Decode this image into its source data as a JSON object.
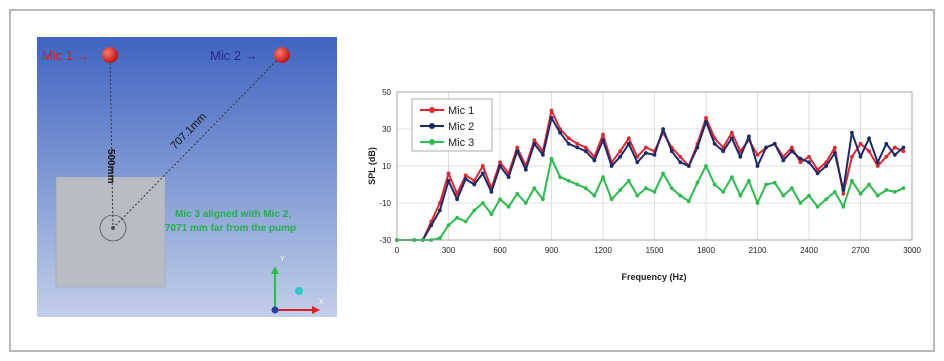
{
  "diagram": {
    "mic1_label": "Mic 1 →",
    "mic2_label": "Mic 2 →",
    "dist1_label": "500mm",
    "dist2_label": "707.1mm",
    "note_line1": "Mic 3 aligned with Mic 2,",
    "note_line2": "7071 mm far from the pump",
    "axis_y": "Y",
    "axis_x": "X",
    "colors": {
      "bg_top": "#3f64c0",
      "bg_bottom": "#c2cfe9",
      "mic": "#d61f1f",
      "note": "#22b14c",
      "label": "#2a2a8a"
    }
  },
  "chart_data": {
    "type": "line",
    "xlabel": "Frequency (Hz)",
    "ylabel": "SPL (dB)",
    "xlim": [
      0,
      3000
    ],
    "ylim": [
      -30,
      50
    ],
    "xticks": [
      0,
      300,
      600,
      900,
      1200,
      1500,
      1800,
      2100,
      2400,
      2700,
      3000
    ],
    "yticks": [
      -30,
      -10,
      10,
      30,
      50
    ],
    "grid": true,
    "legend": "top-left",
    "x": [
      0,
      100,
      150,
      200,
      250,
      300,
      350,
      400,
      450,
      500,
      550,
      600,
      650,
      700,
      750,
      800,
      850,
      900,
      950,
      1000,
      1050,
      1100,
      1150,
      1200,
      1250,
      1300,
      1350,
      1400,
      1450,
      1500,
      1550,
      1600,
      1650,
      1700,
      1750,
      1800,
      1850,
      1900,
      1950,
      2000,
      2050,
      2100,
      2150,
      2200,
      2250,
      2300,
      2350,
      2400,
      2450,
      2500,
      2550,
      2600,
      2650,
      2700,
      2750,
      2800,
      2850,
      2900,
      2950
    ],
    "series": [
      {
        "name": "Mic 1",
        "color": "#e3262e",
        "values": [
          -30,
          -30,
          -30,
          -20,
          -10,
          6,
          -5,
          5,
          2,
          10,
          -2,
          12,
          6,
          20,
          10,
          24,
          18,
          40,
          30,
          25,
          22,
          20,
          15,
          27,
          12,
          18,
          25,
          15,
          20,
          18,
          28,
          20,
          15,
          10,
          22,
          36,
          25,
          20,
          28,
          18,
          24,
          16,
          20,
          22,
          15,
          20,
          12,
          15,
          8,
          12,
          20,
          -5,
          15,
          22,
          18,
          10,
          15,
          20,
          18
        ]
      },
      {
        "name": "Mic 2",
        "color": "#1b2a6b",
        "values": [
          -30,
          -30,
          -30,
          -22,
          -14,
          2,
          -8,
          3,
          0,
          6,
          -4,
          10,
          4,
          18,
          8,
          22,
          16,
          36,
          28,
          22,
          20,
          18,
          13,
          24,
          10,
          15,
          22,
          12,
          17,
          16,
          30,
          18,
          12,
          10,
          20,
          34,
          22,
          18,
          25,
          15,
          26,
          10,
          20,
          22,
          13,
          18,
          14,
          12,
          6,
          10,
          17,
          -3,
          28,
          15,
          25,
          12,
          22,
          16,
          20
        ]
      },
      {
        "name": "Mic 3",
        "color": "#2dbb4e",
        "values": [
          -30,
          -30,
          -30,
          -30,
          -29,
          -22,
          -18,
          -20,
          -14,
          -10,
          -16,
          -8,
          -12,
          -5,
          -10,
          -2,
          -8,
          14,
          4,
          2,
          0,
          -2,
          -6,
          4,
          -8,
          -3,
          2,
          -6,
          -2,
          -4,
          6,
          -2,
          -6,
          -9,
          1,
          10,
          0,
          -4,
          4,
          -6,
          2,
          -10,
          0,
          1,
          -6,
          -2,
          -10,
          -6,
          -12,
          -8,
          -4,
          -12,
          2,
          -5,
          0,
          -6,
          -3,
          -4,
          -2
        ]
      }
    ]
  }
}
